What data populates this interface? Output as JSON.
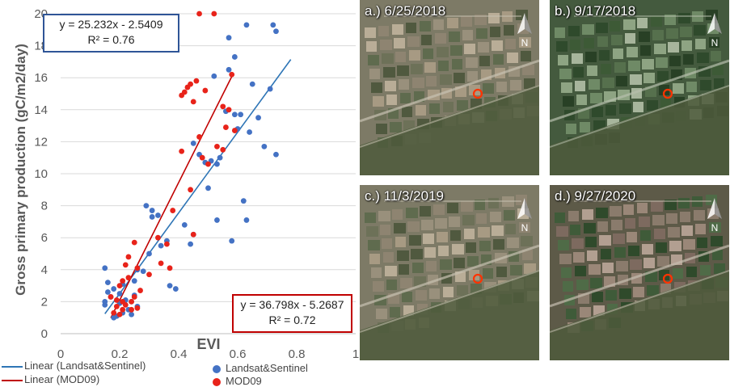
{
  "chart_data": {
    "type": "scatter",
    "title": "",
    "xlabel": "EVI",
    "ylabel": "Gross primary production  (gC/m2/day)",
    "xlim": [
      0,
      1
    ],
    "ylim": [
      0,
      20
    ],
    "x_tick_labels": [
      "0",
      "0.2",
      "0.4",
      "0.6",
      "0.8",
      "1"
    ],
    "y_tick_labels": [
      "0",
      "2",
      "4",
      "6",
      "8",
      "10",
      "12",
      "14",
      "16",
      "18",
      "20"
    ],
    "grid": "horizontal",
    "series": [
      {
        "name": "Landsat&Sentinel",
        "color": "#4472c4",
        "points": [
          [
            0.15,
            4.1
          ],
          [
            0.15,
            2.0
          ],
          [
            0.15,
            1.8
          ],
          [
            0.16,
            3.2
          ],
          [
            0.16,
            2.6
          ],
          [
            0.17,
            2.3
          ],
          [
            0.18,
            2.8
          ],
          [
            0.18,
            1.0
          ],
          [
            0.19,
            1.1
          ],
          [
            0.2,
            2.5
          ],
          [
            0.2,
            1.9
          ],
          [
            0.21,
            1.3
          ],
          [
            0.21,
            3.1
          ],
          [
            0.22,
            2.1
          ],
          [
            0.23,
            1.5
          ],
          [
            0.24,
            2.0
          ],
          [
            0.24,
            1.2
          ],
          [
            0.25,
            3.3
          ],
          [
            0.25,
            2.4
          ],
          [
            0.26,
            4.0
          ],
          [
            0.26,
            1.7
          ],
          [
            0.28,
            3.9
          ],
          [
            0.29,
            8.0
          ],
          [
            0.3,
            5.0
          ],
          [
            0.31,
            7.7
          ],
          [
            0.31,
            7.3
          ],
          [
            0.33,
            7.4
          ],
          [
            0.34,
            5.5
          ],
          [
            0.36,
            5.8
          ],
          [
            0.37,
            3.0
          ],
          [
            0.39,
            2.8
          ],
          [
            0.42,
            6.8
          ],
          [
            0.44,
            5.6
          ],
          [
            0.45,
            6.2
          ],
          [
            0.45,
            11.9
          ],
          [
            0.47,
            11.2
          ],
          [
            0.49,
            10.7
          ],
          [
            0.5,
            9.1
          ],
          [
            0.51,
            10.8
          ],
          [
            0.52,
            16.1
          ],
          [
            0.53,
            10.6
          ],
          [
            0.53,
            7.1
          ],
          [
            0.54,
            11.0
          ],
          [
            0.56,
            13.9
          ],
          [
            0.57,
            18.5
          ],
          [
            0.57,
            16.5
          ],
          [
            0.58,
            5.8
          ],
          [
            0.59,
            17.3
          ],
          [
            0.59,
            13.7
          ],
          [
            0.6,
            12.8
          ],
          [
            0.61,
            13.7
          ],
          [
            0.62,
            8.3
          ],
          [
            0.63,
            7.1
          ],
          [
            0.63,
            19.3
          ],
          [
            0.64,
            12.6
          ],
          [
            0.65,
            15.6
          ],
          [
            0.67,
            13.5
          ],
          [
            0.69,
            11.7
          ],
          [
            0.71,
            15.3
          ],
          [
            0.72,
            19.3
          ],
          [
            0.73,
            18.9
          ],
          [
            0.73,
            11.2
          ]
        ],
        "fit": {
          "slope": 25.232,
          "intercept": -2.5409,
          "x_range": [
            0.15,
            0.78
          ]
        },
        "equation": "y = 25.232x - 2.5409",
        "r2": "R² = 0.76",
        "trendline_label": "Linear (Landsat&Sentinel)",
        "line_color": "#2e75b6"
      },
      {
        "name": "MOD09",
        "color": "#e8231a",
        "points": [
          [
            0.17,
            2.3
          ],
          [
            0.18,
            1.3
          ],
          [
            0.19,
            2.1
          ],
          [
            0.19,
            1.7
          ],
          [
            0.2,
            1.2
          ],
          [
            0.2,
            3.0
          ],
          [
            0.21,
            1.5
          ],
          [
            0.21,
            3.3
          ],
          [
            0.21,
            2.0
          ],
          [
            0.22,
            4.3
          ],
          [
            0.22,
            1.8
          ],
          [
            0.23,
            3.5
          ],
          [
            0.23,
            4.8
          ],
          [
            0.24,
            2.0
          ],
          [
            0.24,
            1.5
          ],
          [
            0.25,
            2.3
          ],
          [
            0.25,
            5.7
          ],
          [
            0.26,
            4.1
          ],
          [
            0.26,
            1.6
          ],
          [
            0.27,
            2.7
          ],
          [
            0.3,
            3.7
          ],
          [
            0.33,
            6.0
          ],
          [
            0.34,
            4.4
          ],
          [
            0.36,
            5.6
          ],
          [
            0.37,
            4.1
          ],
          [
            0.38,
            7.7
          ],
          [
            0.41,
            11.4
          ],
          [
            0.41,
            14.9
          ],
          [
            0.42,
            15.1
          ],
          [
            0.43,
            15.4
          ],
          [
            0.44,
            9.0
          ],
          [
            0.44,
            15.6
          ],
          [
            0.45,
            14.5
          ],
          [
            0.45,
            6.2
          ],
          [
            0.46,
            15.8
          ],
          [
            0.47,
            12.3
          ],
          [
            0.47,
            20.0
          ],
          [
            0.48,
            11.0
          ],
          [
            0.49,
            15.2
          ],
          [
            0.5,
            10.6
          ],
          [
            0.52,
            20.0
          ],
          [
            0.53,
            11.7
          ],
          [
            0.55,
            11.5
          ],
          [
            0.55,
            14.2
          ],
          [
            0.56,
            12.9
          ],
          [
            0.57,
            14.0
          ],
          [
            0.58,
            16.2
          ],
          [
            0.59,
            12.7
          ]
        ],
        "fit": {
          "slope": 36.798,
          "intercept": -5.2687,
          "x_range": [
            0.17,
            0.585
          ]
        },
        "equation": "y = 36.798x - 5.2687",
        "r2": "R² = 0.72",
        "trendline_label": "Linear (MOD09)",
        "line_color": "#c00000"
      }
    ],
    "legend_position": "bottom"
  },
  "maps": [
    {
      "label": "a.) 6/25/2018",
      "north_label": "N",
      "tone": "beige"
    },
    {
      "label": "b.) 9/17/2018",
      "north_label": "N",
      "tone": "green"
    },
    {
      "label": "c.) 11/3/2019",
      "north_label": "N",
      "tone": "beige"
    },
    {
      "label": "d.) 9/27/2020",
      "north_label": "N",
      "tone": "mixed"
    }
  ],
  "colors": {
    "gridline": "#d9d9d9",
    "axis": "#bfbfbf",
    "marker_ring": "#ff3300"
  }
}
